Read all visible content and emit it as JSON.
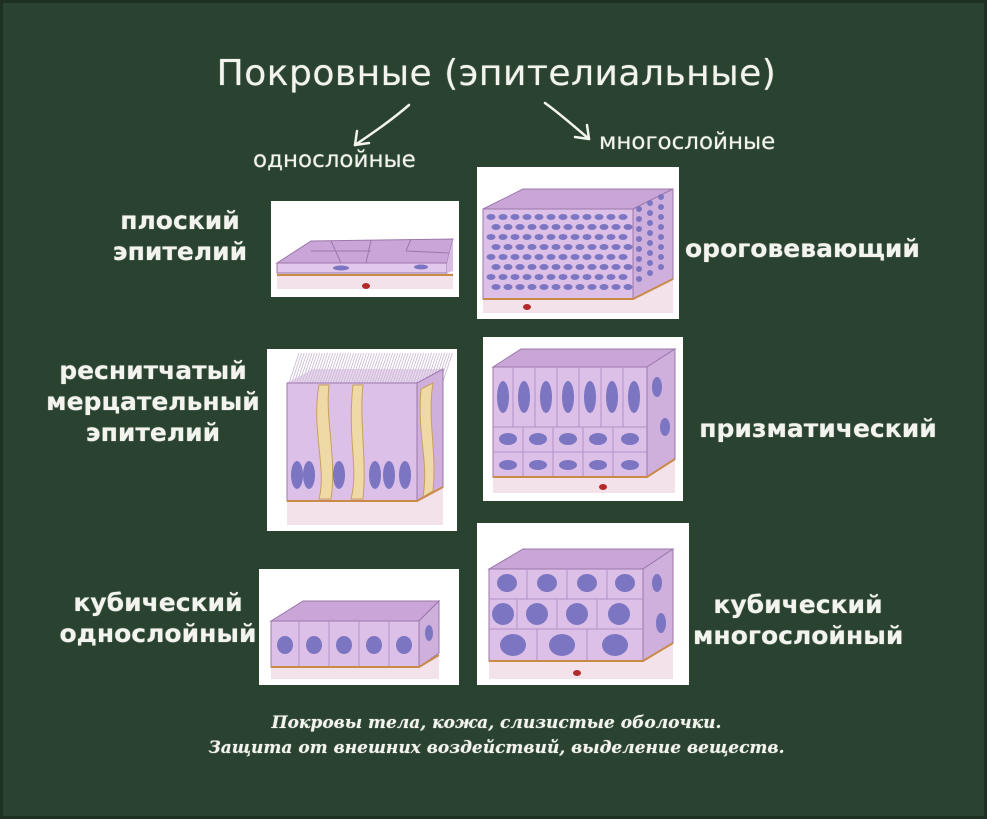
{
  "title": "Покровные (эпителиальные)",
  "branches": {
    "left": "однослойные",
    "right": "многослойные"
  },
  "labels": {
    "flat": [
      "плоский",
      "эпителий"
    ],
    "ciliated": [
      "реснитчатый",
      "мерцательный",
      "эпителий"
    ],
    "cubic_single": [
      "кубический",
      "однослойный"
    ],
    "keratinizing": [
      "ороговевающий"
    ],
    "prismatic": [
      "призматический"
    ],
    "cubic_multi": [
      "кубический",
      "многослойный"
    ]
  },
  "footer": {
    "line1": "Покровы тела, кожа, слизистые оболочки.",
    "line2": "Защита от внешних воздействий, выделение веществ."
  },
  "colors": {
    "board": "#2a4330",
    "chalk": "#f4f4ee",
    "cell_top": "#c9a5d8",
    "cell_side": "#e2c8ea",
    "nucleus": "#7c76c2",
    "basement": "#c98a4a",
    "connective": "#f3e2ea",
    "goblet": "#efd9a6"
  },
  "icons": [
    "arrow-left-icon",
    "arrow-right-icon"
  ]
}
